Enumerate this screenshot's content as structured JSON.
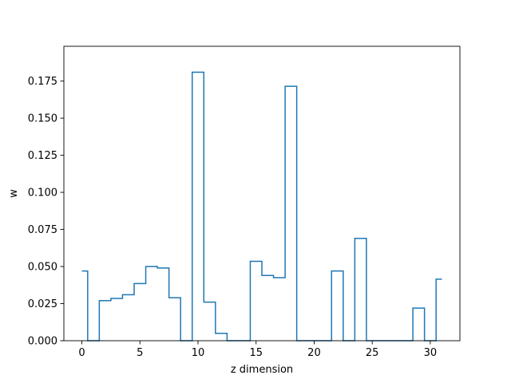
{
  "chart_data": {
    "type": "step",
    "x": [
      0,
      1,
      2,
      3,
      4,
      5,
      6,
      7,
      8,
      9,
      10,
      11,
      12,
      13,
      14,
      15,
      16,
      17,
      18,
      19,
      20,
      21,
      22,
      23,
      24,
      25,
      26,
      27,
      28,
      29,
      30,
      31
    ],
    "values": [
      0.047,
      0.0,
      0.027,
      0.0285,
      0.031,
      0.0385,
      0.05,
      0.049,
      0.029,
      0.0,
      0.181,
      0.026,
      0.005,
      0.0,
      0.0,
      0.0535,
      0.044,
      0.0425,
      0.1715,
      0.0,
      0.0,
      0.0,
      0.047,
      0.0,
      0.069,
      0.0,
      0.0,
      0.0,
      0.0,
      0.022,
      0.0,
      0.0415
    ],
    "xlabel": "z dimension",
    "ylabel": "w",
    "xlim": [
      -1.55,
      32.55
    ],
    "ylim": [
      0,
      0.19845
    ],
    "xticks": [
      0,
      5,
      10,
      15,
      20,
      25,
      30
    ],
    "xtick_labels": [
      "0",
      "5",
      "10",
      "15",
      "20",
      "25",
      "30"
    ],
    "yticks": [
      0,
      0.025,
      0.05,
      0.075,
      0.1,
      0.125,
      0.15,
      0.175
    ],
    "ytick_labels": [
      "0.000",
      "0.025",
      "0.050",
      "0.075",
      "0.100",
      "0.125",
      "0.150",
      "0.175"
    ],
    "grid": false,
    "line_color": "#1f77b4"
  }
}
